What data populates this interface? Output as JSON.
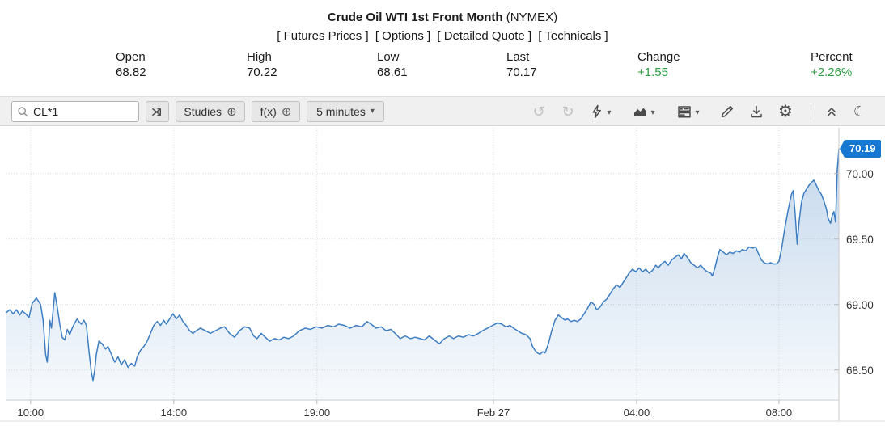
{
  "header": {
    "title": "Crude Oil WTI 1st Front Month",
    "exchange": "(NYMEX)",
    "links": [
      "[ Futures Prices ]",
      "[ Options ]",
      "[ Detailed Quote ]",
      "[ Technicals ]"
    ],
    "stats": [
      {
        "label": "Open",
        "value": "68.82",
        "color": "#1a1a1a"
      },
      {
        "label": "High",
        "value": "70.22",
        "color": "#1a1a1a"
      },
      {
        "label": "Low",
        "value": "68.61",
        "color": "#1a1a1a"
      },
      {
        "label": "Last",
        "value": "70.17",
        "color": "#1a1a1a"
      },
      {
        "label": "Change",
        "value": "+1.55",
        "color": "#2f9e44"
      },
      {
        "label": "Percent",
        "value": "+2.26%",
        "color": "#2f9e44"
      }
    ]
  },
  "toolbar": {
    "symbol_value": "CL*1",
    "studies_label": "Studies",
    "fx_label": "f(x)",
    "interval_label": "5 minutes",
    "icon_glyphs": {
      "plus_circle": "⊕",
      "caret_down": "▾",
      "undo": "↺",
      "redo": "↻",
      "settings_gear": "⚙",
      "moon": "☾"
    }
  },
  "chart_data": {
    "type": "area",
    "title": "Crude Oil WTI 1st Front Month (NYMEX), 5 minute intervals",
    "legend": "CL*1",
    "grid": true,
    "line_color": "#3d7ec2",
    "fill_color": "#3d7ec2",
    "badge_color": "#1778d2",
    "last_price": "70.19",
    "ylim": [
      68.27,
      70.35
    ],
    "y_ticks": [
      {
        "label": "70.00",
        "value": 70.0
      },
      {
        "label": "69.50",
        "value": 69.5
      },
      {
        "label": "69.00",
        "value": 69.0
      },
      {
        "label": "68.50",
        "value": 68.5
      }
    ],
    "x_ticks": [
      {
        "label": "10:00",
        "pos": 0.029
      },
      {
        "label": "14:00",
        "pos": 0.201
      },
      {
        "label": "19:00",
        "pos": 0.373
      },
      {
        "label": "Feb 27",
        "pos": 0.585
      },
      {
        "label": "04:00",
        "pos": 0.757
      },
      {
        "label": "08:00",
        "pos": 0.928
      }
    ],
    "series": [
      {
        "name": "CL*1",
        "points": [
          [
            0.0,
            68.94
          ],
          [
            0.004,
            68.96
          ],
          [
            0.008,
            68.93
          ],
          [
            0.012,
            68.96
          ],
          [
            0.016,
            68.92
          ],
          [
            0.019,
            68.95
          ],
          [
            0.023,
            68.93
          ],
          [
            0.027,
            68.9
          ],
          [
            0.031,
            69.01
          ],
          [
            0.036,
            69.05
          ],
          [
            0.041,
            69.0
          ],
          [
            0.044,
            68.88
          ],
          [
            0.047,
            68.62
          ],
          [
            0.049,
            68.56
          ],
          [
            0.051,
            68.75
          ],
          [
            0.052,
            68.88
          ],
          [
            0.054,
            68.82
          ],
          [
            0.056,
            68.95
          ],
          [
            0.058,
            69.09
          ],
          [
            0.061,
            68.98
          ],
          [
            0.064,
            68.85
          ],
          [
            0.067,
            68.75
          ],
          [
            0.07,
            68.73
          ],
          [
            0.073,
            68.81
          ],
          [
            0.076,
            68.77
          ],
          [
            0.079,
            68.82
          ],
          [
            0.082,
            68.86
          ],
          [
            0.085,
            68.89
          ],
          [
            0.087,
            68.87
          ],
          [
            0.09,
            68.85
          ],
          [
            0.093,
            68.88
          ],
          [
            0.096,
            68.84
          ],
          [
            0.099,
            68.65
          ],
          [
            0.102,
            68.48
          ],
          [
            0.104,
            68.42
          ],
          [
            0.106,
            68.5
          ],
          [
            0.108,
            68.62
          ],
          [
            0.111,
            68.72
          ],
          [
            0.115,
            68.7
          ],
          [
            0.119,
            68.66
          ],
          [
            0.122,
            68.68
          ],
          [
            0.126,
            68.62
          ],
          [
            0.13,
            68.56
          ],
          [
            0.134,
            68.6
          ],
          [
            0.138,
            68.54
          ],
          [
            0.142,
            68.58
          ],
          [
            0.146,
            68.52
          ],
          [
            0.15,
            68.55
          ],
          [
            0.154,
            68.53
          ],
          [
            0.157,
            68.6
          ],
          [
            0.161,
            68.65
          ],
          [
            0.165,
            68.68
          ],
          [
            0.169,
            68.72
          ],
          [
            0.173,
            68.78
          ],
          [
            0.177,
            68.84
          ],
          [
            0.181,
            68.87
          ],
          [
            0.185,
            68.84
          ],
          [
            0.189,
            68.88
          ],
          [
            0.192,
            68.85
          ],
          [
            0.196,
            68.89
          ],
          [
            0.2,
            68.93
          ],
          [
            0.204,
            68.89
          ],
          [
            0.208,
            68.92
          ],
          [
            0.212,
            68.87
          ],
          [
            0.216,
            68.84
          ],
          [
            0.22,
            68.8
          ],
          [
            0.224,
            68.78
          ],
          [
            0.228,
            68.8
          ],
          [
            0.233,
            68.82
          ],
          [
            0.239,
            68.8
          ],
          [
            0.245,
            68.78
          ],
          [
            0.251,
            68.8
          ],
          [
            0.257,
            68.82
          ],
          [
            0.262,
            68.83
          ],
          [
            0.268,
            68.78
          ],
          [
            0.274,
            68.75
          ],
          [
            0.28,
            68.8
          ],
          [
            0.286,
            68.83
          ],
          [
            0.292,
            68.82
          ],
          [
            0.297,
            68.76
          ],
          [
            0.301,
            68.74
          ],
          [
            0.306,
            68.78
          ],
          [
            0.311,
            68.75
          ],
          [
            0.316,
            68.72
          ],
          [
            0.322,
            68.74
          ],
          [
            0.328,
            68.73
          ],
          [
            0.333,
            68.75
          ],
          [
            0.339,
            68.74
          ],
          [
            0.345,
            68.76
          ],
          [
            0.352,
            68.8
          ],
          [
            0.359,
            68.82
          ],
          [
            0.365,
            68.81
          ],
          [
            0.372,
            68.83
          ],
          [
            0.379,
            68.82
          ],
          [
            0.386,
            68.84
          ],
          [
            0.393,
            68.83
          ],
          [
            0.399,
            68.85
          ],
          [
            0.406,
            68.84
          ],
          [
            0.413,
            68.82
          ],
          [
            0.42,
            68.84
          ],
          [
            0.427,
            68.83
          ],
          [
            0.433,
            68.87
          ],
          [
            0.438,
            68.85
          ],
          [
            0.444,
            68.82
          ],
          [
            0.45,
            68.83
          ],
          [
            0.456,
            68.8
          ],
          [
            0.462,
            68.81
          ],
          [
            0.467,
            68.78
          ],
          [
            0.473,
            68.74
          ],
          [
            0.479,
            68.76
          ],
          [
            0.485,
            68.74
          ],
          [
            0.491,
            68.75
          ],
          [
            0.497,
            68.74
          ],
          [
            0.502,
            68.73
          ],
          [
            0.508,
            68.76
          ],
          [
            0.514,
            68.73
          ],
          [
            0.52,
            68.7
          ],
          [
            0.526,
            68.74
          ],
          [
            0.532,
            68.76
          ],
          [
            0.537,
            68.74
          ],
          [
            0.543,
            68.76
          ],
          [
            0.549,
            68.75
          ],
          [
            0.555,
            68.77
          ],
          [
            0.561,
            68.76
          ],
          [
            0.567,
            68.78
          ],
          [
            0.572,
            68.8
          ],
          [
            0.578,
            68.82
          ],
          [
            0.584,
            68.84
          ],
          [
            0.59,
            68.86
          ],
          [
            0.595,
            68.85
          ],
          [
            0.6,
            68.83
          ],
          [
            0.605,
            68.84
          ],
          [
            0.609,
            68.82
          ],
          [
            0.614,
            68.8
          ],
          [
            0.619,
            68.78
          ],
          [
            0.624,
            68.77
          ],
          [
            0.629,
            68.74
          ],
          [
            0.632,
            68.68
          ],
          [
            0.635,
            68.65
          ],
          [
            0.638,
            68.63
          ],
          [
            0.641,
            68.62
          ],
          [
            0.644,
            68.64
          ],
          [
            0.647,
            68.63
          ],
          [
            0.651,
            68.7
          ],
          [
            0.655,
            68.8
          ],
          [
            0.659,
            68.88
          ],
          [
            0.663,
            68.92
          ],
          [
            0.667,
            68.9
          ],
          [
            0.671,
            68.88
          ],
          [
            0.674,
            68.89
          ],
          [
            0.678,
            68.87
          ],
          [
            0.682,
            68.88
          ],
          [
            0.686,
            68.87
          ],
          [
            0.69,
            68.89
          ],
          [
            0.694,
            68.93
          ],
          [
            0.698,
            68.97
          ],
          [
            0.702,
            69.02
          ],
          [
            0.706,
            69.0
          ],
          [
            0.709,
            68.96
          ],
          [
            0.713,
            68.98
          ],
          [
            0.717,
            69.02
          ],
          [
            0.721,
            69.04
          ],
          [
            0.725,
            69.08
          ],
          [
            0.729,
            69.12
          ],
          [
            0.733,
            69.15
          ],
          [
            0.737,
            69.13
          ],
          [
            0.741,
            69.17
          ],
          [
            0.744,
            69.2
          ],
          [
            0.748,
            69.24
          ],
          [
            0.752,
            69.27
          ],
          [
            0.756,
            69.25
          ],
          [
            0.76,
            69.28
          ],
          [
            0.764,
            69.25
          ],
          [
            0.768,
            69.27
          ],
          [
            0.772,
            69.24
          ],
          [
            0.776,
            69.26
          ],
          [
            0.78,
            69.3
          ],
          [
            0.783,
            69.28
          ],
          [
            0.787,
            69.31
          ],
          [
            0.791,
            69.33
          ],
          [
            0.795,
            69.3
          ],
          [
            0.799,
            69.34
          ],
          [
            0.803,
            69.36
          ],
          [
            0.807,
            69.38
          ],
          [
            0.811,
            69.35
          ],
          [
            0.814,
            69.39
          ],
          [
            0.818,
            69.36
          ],
          [
            0.822,
            69.32
          ],
          [
            0.826,
            69.3
          ],
          [
            0.83,
            69.28
          ],
          [
            0.834,
            69.3
          ],
          [
            0.838,
            69.27
          ],
          [
            0.842,
            69.25
          ],
          [
            0.846,
            69.24
          ],
          [
            0.848,
            69.22
          ],
          [
            0.851,
            69.28
          ],
          [
            0.854,
            69.36
          ],
          [
            0.857,
            69.42
          ],
          [
            0.861,
            69.4
          ],
          [
            0.865,
            69.38
          ],
          [
            0.869,
            69.4
          ],
          [
            0.873,
            69.39
          ],
          [
            0.877,
            69.41
          ],
          [
            0.881,
            69.4
          ],
          [
            0.884,
            69.42
          ],
          [
            0.888,
            69.41
          ],
          [
            0.892,
            69.44
          ],
          [
            0.896,
            69.43
          ],
          [
            0.9,
            69.44
          ],
          [
            0.904,
            69.38
          ],
          [
            0.907,
            69.34
          ],
          [
            0.91,
            69.32
          ],
          [
            0.914,
            69.31
          ],
          [
            0.918,
            69.32
          ],
          [
            0.921,
            69.31
          ],
          [
            0.925,
            69.31
          ],
          [
            0.928,
            69.33
          ],
          [
            0.931,
            69.42
          ],
          [
            0.935,
            69.58
          ],
          [
            0.939,
            69.72
          ],
          [
            0.943,
            69.84
          ],
          [
            0.945,
            69.87
          ],
          [
            0.947,
            69.73
          ],
          [
            0.949,
            69.55
          ],
          [
            0.95,
            69.46
          ],
          [
            0.952,
            69.62
          ],
          [
            0.955,
            69.78
          ],
          [
            0.958,
            69.85
          ],
          [
            0.961,
            69.88
          ],
          [
            0.964,
            69.91
          ],
          [
            0.967,
            69.93
          ],
          [
            0.97,
            69.95
          ],
          [
            0.973,
            69.91
          ],
          [
            0.976,
            69.87
          ],
          [
            0.979,
            69.84
          ],
          [
            0.982,
            69.79
          ],
          [
            0.985,
            69.73
          ],
          [
            0.987,
            69.66
          ],
          [
            0.99,
            69.62
          ],
          [
            0.992,
            69.68
          ],
          [
            0.994,
            69.71
          ],
          [
            0.996,
            69.63
          ],
          [
            0.997,
            69.82
          ],
          [
            0.998,
            70.02
          ],
          [
            1.0,
            70.19
          ]
        ]
      }
    ]
  }
}
